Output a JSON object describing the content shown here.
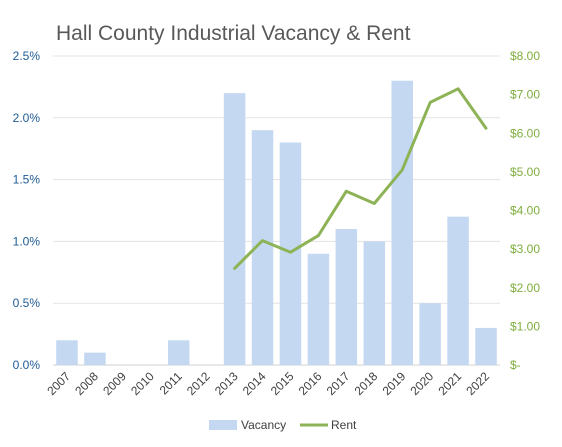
{
  "chart_data": {
    "type": "bar",
    "title": "Hall County Industrial Vacancy & Rent",
    "categories": [
      "2007",
      "2008",
      "2009",
      "2010",
      "2011",
      "2012",
      "2013",
      "2014",
      "2015",
      "2016",
      "2017",
      "2018",
      "2019",
      "2020",
      "2021",
      "2022"
    ],
    "series": [
      {
        "name": "Vacancy",
        "type": "bar",
        "axis": "left",
        "color": "#c5d8f1",
        "values": [
          0.2,
          0.1,
          0,
          0,
          0.2,
          0,
          2.2,
          1.9,
          1.8,
          0.9,
          1.1,
          1.0,
          2.3,
          0.5,
          1.2,
          0.3
        ]
      },
      {
        "name": "Rent",
        "type": "line",
        "axis": "right",
        "color": "#8db356",
        "values": [
          null,
          null,
          null,
          null,
          null,
          null,
          2.5,
          3.22,
          2.92,
          3.35,
          4.5,
          4.18,
          5.05,
          6.8,
          7.15,
          6.13
        ]
      }
    ],
    "y_left": {
      "ylim": [
        0,
        2.5
      ],
      "ticks": [
        0,
        0.5,
        1.0,
        1.5,
        2.0,
        2.5
      ],
      "tick_labels": [
        "0.0%",
        "0.5%",
        "1.0%",
        "1.5%",
        "2.0%",
        "2.5%"
      ]
    },
    "y_right": {
      "ylim": [
        0,
        8
      ],
      "ticks": [
        0,
        1,
        2,
        3,
        4,
        5,
        6,
        7,
        8
      ],
      "tick_labels": [
        "$-",
        "$1.00",
        "$2.00",
        "$3.00",
        "$4.00",
        "$5.00",
        "$6.00",
        "$7.00",
        "$8.00"
      ]
    },
    "xlabel": "",
    "ylabel": "",
    "grid": true,
    "legend_position": "bottom",
    "gridline_color": "#e3e3e3"
  }
}
